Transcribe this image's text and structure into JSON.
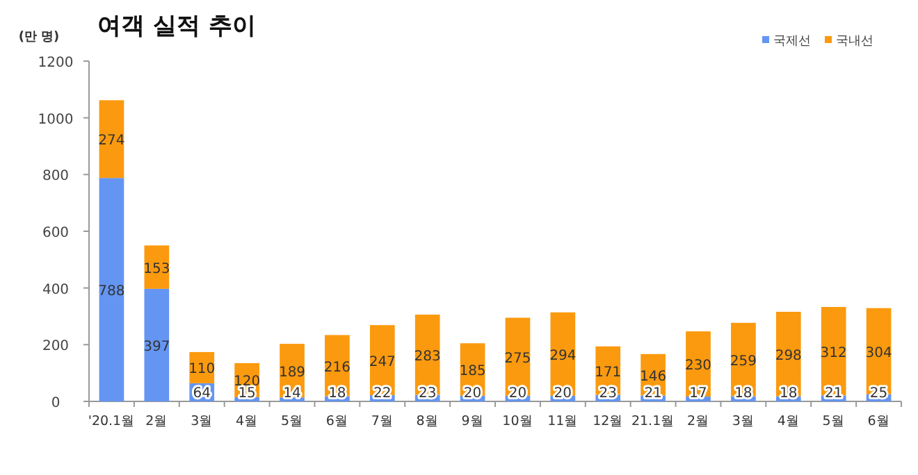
{
  "chart_data": {
    "type": "bar",
    "stacked": true,
    "title": "여객 실적 추이",
    "ylabel": "(만 명)",
    "categories": [
      "'20.1월",
      "2월",
      "3월",
      "4월",
      "5월",
      "6월",
      "7월",
      "8월",
      "9월",
      "10월",
      "11월",
      "12월",
      "21.1월",
      "2월",
      "3월",
      "4월",
      "5월",
      "6월"
    ],
    "series": [
      {
        "name": "국제선",
        "color": "#6495f2",
        "values": [
          788,
          397,
          64,
          15,
          14,
          18,
          22,
          23,
          20,
          20,
          20,
          23,
          21,
          17,
          18,
          18,
          21,
          25
        ]
      },
      {
        "name": "국내선",
        "color": "#fb9a0e",
        "values": [
          274,
          153,
          110,
          120,
          189,
          216,
          247,
          283,
          185,
          275,
          294,
          171,
          146,
          230,
          259,
          298,
          312,
          304
        ]
      }
    ],
    "ylim": [
      0,
      1200
    ],
    "yticks": [
      0,
      200,
      400,
      600,
      800,
      1000,
      1200
    ],
    "data_labels": true,
    "legend": "top right"
  }
}
